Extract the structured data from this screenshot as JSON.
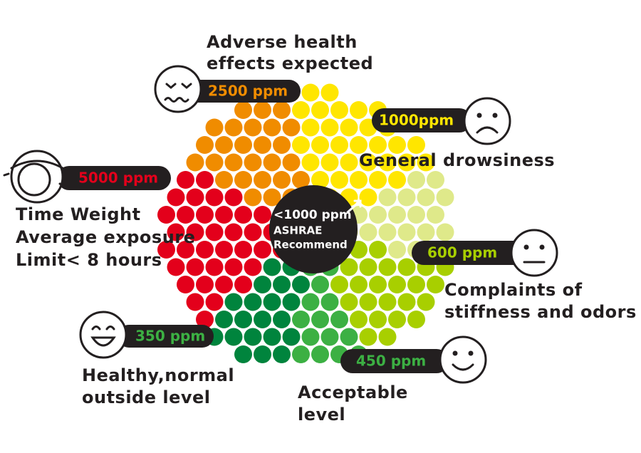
{
  "labels": [
    {
      "value": "2500 ppm",
      "description": [
        "Adverse health",
        "effects expected"
      ]
    },
    {
      "value": "1000ppm",
      "description": [
        "General drowsiness"
      ]
    },
    {
      "value": "5000 ppm",
      "description": [
        "Time Weight",
        "Average exposure",
        "Limit< 8 hours"
      ]
    },
    {
      "value": "600 ppm",
      "description": [
        "Complaints of",
        "stiffness and odors"
      ]
    },
    {
      "value": "350 ppm",
      "description": [
        "Healthy,normal",
        "outside level"
      ]
    },
    {
      "value": "450 ppm",
      "description": [
        "Acceptable",
        "level"
      ]
    }
  ],
  "center": [
    "<1000 ppm",
    "ASHRAE",
    "Recommend"
  ]
}
